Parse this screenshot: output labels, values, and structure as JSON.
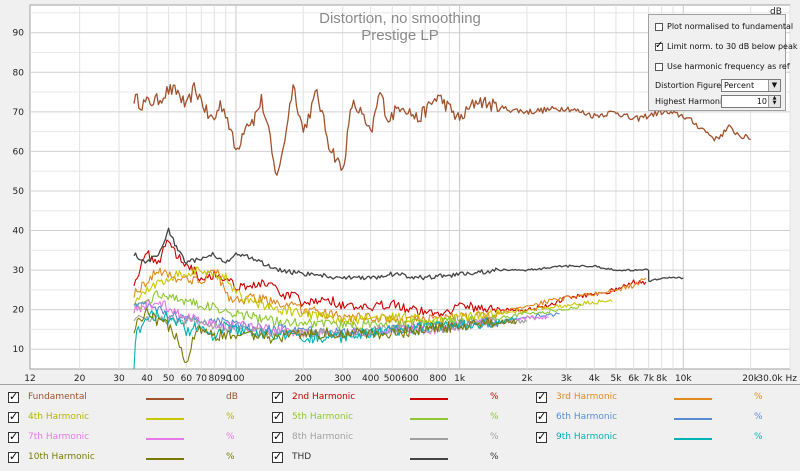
{
  "chart_data": {
    "type": "line",
    "title": "Distortion, no smoothing",
    "subtitle": "Prestige LP",
    "x_scale": "log",
    "x_unit": "Hz",
    "y_unit": "dB",
    "xlim": [
      12,
      30000
    ],
    "ylim": [
      5,
      97
    ],
    "grid": true,
    "x_ticks": [
      {
        "v": 12,
        "t": "12"
      },
      {
        "v": 20,
        "t": "20"
      },
      {
        "v": 30,
        "t": "30"
      },
      {
        "v": 40,
        "t": "40"
      },
      {
        "v": 50,
        "t": "50"
      },
      {
        "v": 60,
        "t": "60"
      },
      {
        "v": 70,
        "t": "70"
      },
      {
        "v": 80,
        "t": "80"
      },
      {
        "v": 90,
        "t": "90"
      },
      {
        "v": 100,
        "t": "100"
      },
      {
        "v": 200,
        "t": "200"
      },
      {
        "v": 300,
        "t": "300"
      },
      {
        "v": 400,
        "t": "400"
      },
      {
        "v": 500,
        "t": "500"
      },
      {
        "v": 600,
        "t": "600"
      },
      {
        "v": 800,
        "t": "800"
      },
      {
        "v": 1000,
        "t": "1k"
      },
      {
        "v": 2000,
        "t": "2k"
      },
      {
        "v": 3000,
        "t": "3k"
      },
      {
        "v": 4000,
        "t": "4k"
      },
      {
        "v": 5000,
        "t": "5k"
      },
      {
        "v": 6000,
        "t": "6k"
      },
      {
        "v": 7000,
        "t": "7k"
      },
      {
        "v": 8000,
        "t": "8k"
      },
      {
        "v": 10000,
        "t": "10k"
      },
      {
        "v": 20000,
        "t": "20k"
      },
      {
        "v": 30000,
        "t": "30.0k Hz"
      }
    ],
    "y_ticks": [
      10,
      20,
      30,
      40,
      50,
      60,
      70,
      80,
      90
    ],
    "series": [
      {
        "name": "Fundamental",
        "color": "#a0522d",
        "unit": "dB",
        "jitter": 3.5,
        "points": [
          [
            35,
            73.5
          ],
          [
            38,
            72
          ],
          [
            45,
            73
          ],
          [
            50,
            75.5
          ],
          [
            55,
            75
          ],
          [
            60,
            71
          ],
          [
            65,
            76
          ],
          [
            70,
            73
          ],
          [
            75,
            69
          ],
          [
            80,
            68
          ],
          [
            85,
            72
          ],
          [
            90,
            70
          ],
          [
            100,
            60
          ],
          [
            105,
            63
          ],
          [
            110,
            67
          ],
          [
            120,
            68
          ],
          [
            130,
            73
          ],
          [
            140,
            65
          ],
          [
            150,
            54
          ],
          [
            160,
            58
          ],
          [
            180,
            77
          ],
          [
            200,
            65
          ],
          [
            230,
            75
          ],
          [
            260,
            62
          ],
          [
            300,
            55
          ],
          [
            330,
            72
          ],
          [
            360,
            70
          ],
          [
            400,
            64
          ],
          [
            440,
            75
          ],
          [
            480,
            68
          ],
          [
            550,
            72
          ],
          [
            650,
            68
          ],
          [
            800,
            74
          ],
          [
            1000,
            68
          ],
          [
            1200,
            73
          ],
          [
            1500,
            71
          ],
          [
            2000,
            70
          ],
          [
            3000,
            71
          ],
          [
            4000,
            69
          ],
          [
            5000,
            70
          ],
          [
            6000,
            68
          ],
          [
            8000,
            70
          ],
          [
            10000,
            69
          ],
          [
            12000,
            66
          ],
          [
            14000,
            63
          ],
          [
            16000,
            66
          ],
          [
            18000,
            64
          ],
          [
            20000,
            63
          ]
        ]
      },
      {
        "name": "2nd Harmonic",
        "color": "#cc0000",
        "unit": "%",
        "jitter": 2.5,
        "points": [
          [
            35,
            27
          ],
          [
            40,
            34
          ],
          [
            45,
            32
          ],
          [
            50,
            38
          ],
          [
            55,
            33
          ],
          [
            60,
            32
          ],
          [
            70,
            28
          ],
          [
            80,
            29
          ],
          [
            90,
            28
          ],
          [
            100,
            26
          ],
          [
            120,
            26
          ],
          [
            140,
            27
          ],
          [
            160,
            23
          ],
          [
            180,
            24
          ],
          [
            200,
            21
          ],
          [
            250,
            23
          ],
          [
            300,
            21
          ],
          [
            400,
            20
          ],
          [
            500,
            22
          ],
          [
            600,
            20
          ],
          [
            800,
            19
          ],
          [
            1000,
            21
          ],
          [
            1500,
            20
          ],
          [
            2000,
            20
          ],
          [
            2500,
            21
          ],
          [
            3000,
            23
          ],
          [
            4000,
            24
          ],
          [
            5000,
            25
          ],
          [
            6000,
            27
          ],
          [
            6800,
            27
          ]
        ]
      },
      {
        "name": "3rd Harmonic",
        "color": "#e08a1e",
        "unit": "%",
        "jitter": 2.5,
        "points": [
          [
            35,
            24
          ],
          [
            45,
            30
          ],
          [
            55,
            28
          ],
          [
            70,
            27
          ],
          [
            80,
            31
          ],
          [
            90,
            24
          ],
          [
            100,
            22
          ],
          [
            120,
            23
          ],
          [
            150,
            22
          ],
          [
            200,
            20
          ],
          [
            300,
            18
          ],
          [
            400,
            18
          ],
          [
            600,
            17
          ],
          [
            800,
            18
          ],
          [
            1000,
            18
          ],
          [
            1500,
            19
          ],
          [
            2000,
            21
          ],
          [
            3000,
            23
          ],
          [
            4000,
            24
          ],
          [
            5000,
            25
          ],
          [
            6000,
            26
          ],
          [
            6800,
            28
          ]
        ]
      },
      {
        "name": "4th Harmonic",
        "color": "#c8c800",
        "unit": "%",
        "jitter": 2.5,
        "points": [
          [
            35,
            22
          ],
          [
            45,
            27
          ],
          [
            55,
            29
          ],
          [
            70,
            30
          ],
          [
            80,
            28
          ],
          [
            90,
            29
          ],
          [
            100,
            24
          ],
          [
            120,
            22
          ],
          [
            150,
            20
          ],
          [
            200,
            19
          ],
          [
            300,
            17
          ],
          [
            400,
            18
          ],
          [
            600,
            18
          ],
          [
            800,
            17
          ],
          [
            1000,
            18
          ],
          [
            1500,
            19
          ],
          [
            2000,
            20
          ],
          [
            3000,
            21
          ],
          [
            4000,
            22
          ],
          [
            4800,
            22
          ]
        ]
      },
      {
        "name": "5th Harmonic",
        "color": "#8cc832",
        "unit": "%",
        "jitter": 2.5,
        "points": [
          [
            35,
            20
          ],
          [
            45,
            24
          ],
          [
            55,
            23
          ],
          [
            70,
            21
          ],
          [
            90,
            20
          ],
          [
            100,
            19
          ],
          [
            150,
            17
          ],
          [
            200,
            17
          ],
          [
            300,
            16
          ],
          [
            500,
            16
          ],
          [
            800,
            17
          ],
          [
            1000,
            17
          ],
          [
            1500,
            18
          ],
          [
            2000,
            19
          ],
          [
            3000,
            20
          ],
          [
            3500,
            21
          ]
        ]
      },
      {
        "name": "6th Harmonic",
        "color": "#5a8cd2",
        "unit": "%",
        "jitter": 2.5,
        "points": [
          [
            35,
            22
          ],
          [
            45,
            20
          ],
          [
            55,
            18
          ],
          [
            70,
            17
          ],
          [
            90,
            17
          ],
          [
            100,
            16
          ],
          [
            150,
            15
          ],
          [
            200,
            15
          ],
          [
            300,
            14
          ],
          [
            500,
            15
          ],
          [
            800,
            16
          ],
          [
            1000,
            16
          ],
          [
            1500,
            17
          ],
          [
            2000,
            18
          ],
          [
            2800,
            19
          ]
        ]
      },
      {
        "name": "7th Harmonic",
        "color": "#e678e6",
        "unit": "%",
        "jitter": 2.5,
        "points": [
          [
            35,
            20
          ],
          [
            45,
            22
          ],
          [
            55,
            19
          ],
          [
            70,
            17
          ],
          [
            90,
            16
          ],
          [
            100,
            16
          ],
          [
            150,
            15
          ],
          [
            200,
            14
          ],
          [
            300,
            14
          ],
          [
            500,
            15
          ],
          [
            800,
            15
          ],
          [
            1000,
            16
          ],
          [
            1500,
            17
          ],
          [
            2000,
            18
          ],
          [
            2500,
            18
          ]
        ]
      },
      {
        "name": "8th Harmonic",
        "color": "#a0a0a0",
        "unit": "%",
        "jitter": 2.5,
        "points": [
          [
            35,
            18
          ],
          [
            45,
            18
          ],
          [
            55,
            17
          ],
          [
            70,
            17
          ],
          [
            90,
            15
          ],
          [
            100,
            15
          ],
          [
            150,
            14
          ],
          [
            200,
            14
          ],
          [
            300,
            14
          ],
          [
            500,
            15
          ],
          [
            800,
            15
          ],
          [
            1000,
            16
          ],
          [
            1500,
            17
          ],
          [
            2000,
            17
          ]
        ]
      },
      {
        "name": "9th Harmonic",
        "color": "#00b4b4",
        "unit": "%",
        "jitter": 3,
        "points": [
          [
            35,
            6
          ],
          [
            36,
            14
          ],
          [
            40,
            18
          ],
          [
            45,
            19
          ],
          [
            55,
            17
          ],
          [
            60,
            14
          ],
          [
            70,
            16
          ],
          [
            80,
            13
          ],
          [
            90,
            16
          ],
          [
            100,
            15
          ],
          [
            120,
            14
          ],
          [
            150,
            14
          ],
          [
            200,
            13
          ],
          [
            300,
            13
          ],
          [
            400,
            14
          ],
          [
            600,
            15
          ],
          [
            800,
            16
          ],
          [
            1000,
            16
          ],
          [
            1500,
            17
          ],
          [
            1800,
            18
          ]
        ]
      },
      {
        "name": "10th Harmonic",
        "color": "#7a7a00",
        "unit": "%",
        "jitter": 3,
        "points": [
          [
            35,
            15
          ],
          [
            40,
            19
          ],
          [
            45,
            17
          ],
          [
            50,
            16
          ],
          [
            55,
            12
          ],
          [
            60,
            6
          ],
          [
            65,
            14
          ],
          [
            70,
            15
          ],
          [
            80,
            13
          ],
          [
            90,
            14
          ],
          [
            100,
            13
          ],
          [
            120,
            13
          ],
          [
            150,
            13
          ],
          [
            200,
            14
          ],
          [
            300,
            14
          ],
          [
            500,
            14
          ],
          [
            700,
            15
          ],
          [
            1000,
            16
          ],
          [
            1500,
            17
          ],
          [
            1800,
            17
          ]
        ]
      },
      {
        "name": "THD",
        "color": "#444444",
        "unit": "%",
        "jitter": 1.2,
        "points": [
          [
            35,
            34
          ],
          [
            40,
            32
          ],
          [
            45,
            34
          ],
          [
            50,
            40
          ],
          [
            55,
            35
          ],
          [
            60,
            32
          ],
          [
            70,
            33
          ],
          [
            80,
            34
          ],
          [
            90,
            32
          ],
          [
            100,
            34
          ],
          [
            120,
            33
          ],
          [
            140,
            31
          ],
          [
            160,
            30
          ],
          [
            200,
            29
          ],
          [
            300,
            28
          ],
          [
            400,
            28
          ],
          [
            500,
            29
          ],
          [
            700,
            28
          ],
          [
            1000,
            29
          ],
          [
            1500,
            30
          ],
          [
            2000,
            30
          ],
          [
            3000,
            31
          ],
          [
            4000,
            31
          ],
          [
            5000,
            30
          ],
          [
            6000,
            30
          ],
          [
            7000,
            30
          ],
          [
            7001,
            27
          ],
          [
            8000,
            28
          ],
          [
            10000,
            28
          ]
        ]
      }
    ]
  },
  "controls": {
    "plot_normalised_label": "Plot normalised to fundamental",
    "plot_normalised_checked": false,
    "limit_norm_label": "Limit norm. to 30 dB below peak",
    "limit_norm_checked": true,
    "use_harmonic_freq_label": "Use harmonic frequency as ref",
    "use_harmonic_freq_checked": false,
    "distortion_figures_label": "Distortion Figures:",
    "distortion_figures_value": "Percent",
    "highest_harmonic_label": "Highest Harmonic:",
    "highest_harmonic_value": "10"
  },
  "legend": [
    {
      "name": "Fundamental",
      "unit": "dB",
      "color": "#a0522d",
      "text_color": "#a0522d",
      "checked": true
    },
    {
      "name": "2nd Harmonic",
      "unit": "%",
      "color": "#cc0000",
      "text_color": "#cc0000",
      "checked": true
    },
    {
      "name": "3rd Harmonic",
      "unit": "%",
      "color": "#e08a1e",
      "text_color": "#e08a1e",
      "checked": true
    },
    {
      "name": "4th Harmonic",
      "unit": "%",
      "color": "#c8c800",
      "text_color": "#b4b400",
      "checked": true
    },
    {
      "name": "5th Harmonic",
      "unit": "%",
      "color": "#8cc832",
      "text_color": "#8cc832",
      "checked": true
    },
    {
      "name": "6th Harmonic",
      "unit": "%",
      "color": "#5a8cd2",
      "text_color": "#5a8cd2",
      "checked": true
    },
    {
      "name": "7th Harmonic",
      "unit": "%",
      "color": "#e678e6",
      "text_color": "#e678e6",
      "checked": true
    },
    {
      "name": "8th Harmonic",
      "unit": "%",
      "color": "#a0a0a0",
      "text_color": "#a0a0a0",
      "checked": true
    },
    {
      "name": "9th Harmonic",
      "unit": "%",
      "color": "#00b4b4",
      "text_color": "#00b4b4",
      "checked": true
    },
    {
      "name": "10th Harmonic",
      "unit": "%",
      "color": "#7a7a00",
      "text_color": "#7a7a00",
      "checked": true
    },
    {
      "name": "THD",
      "unit": "%",
      "color": "#444444",
      "text_color": "#333333",
      "checked": true
    }
  ]
}
